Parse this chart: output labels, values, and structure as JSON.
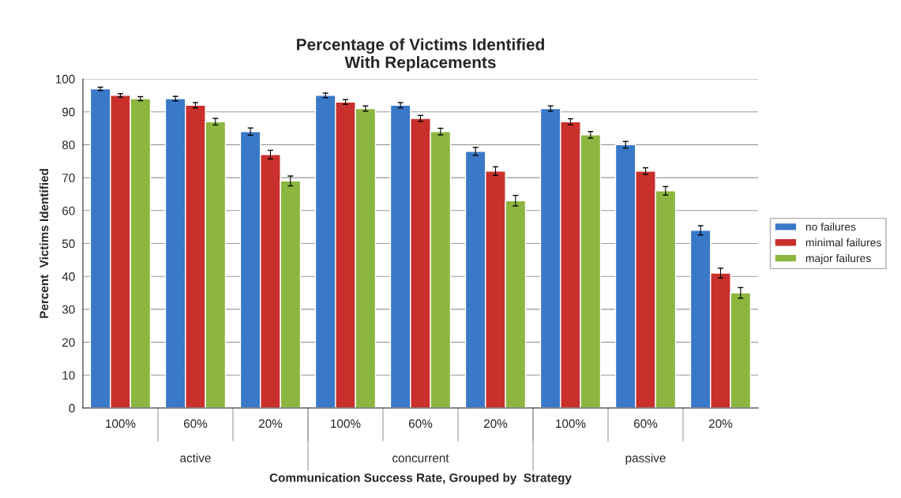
{
  "chart_data": {
    "type": "bar",
    "title": "Percentage of Victims Identified\nWith Replacements",
    "xlabel": "Communication Success Rate, Grouped by  Strategy",
    "ylabel": "Percent  Victims Identified",
    "categories": [
      "100%",
      "60%",
      "20%",
      "100%",
      "60%",
      "20%",
      "100%",
      "60%",
      "20%"
    ],
    "annotations": [
      "active",
      "concurrent",
      "passive"
    ],
    "series": [
      {
        "name": "no failures",
        "color": "#3a78c8",
        "values": [
          97,
          94,
          84,
          95,
          92,
          78,
          91,
          80,
          54
        ],
        "errors": [
          0.5,
          0.7,
          1.1,
          0.7,
          0.8,
          1.2,
          0.8,
          1.0,
          1.4
        ]
      },
      {
        "name": "minimal failures",
        "color": "#c9302c",
        "values": [
          95,
          92,
          77,
          93,
          88,
          72,
          87,
          72,
          41
        ],
        "errors": [
          0.5,
          0.8,
          1.3,
          0.7,
          0.9,
          1.3,
          0.9,
          1.0,
          1.5
        ]
      },
      {
        "name": "major failures",
        "color": "#8db640",
        "values": [
          94,
          87,
          69,
          91,
          84,
          63,
          83,
          66,
          35
        ],
        "errors": [
          0.6,
          1.0,
          1.5,
          0.8,
          1.0,
          1.6,
          1.0,
          1.3,
          1.6
        ]
      }
    ],
    "ylim": [
      0,
      100
    ],
    "yticks": [
      0,
      10,
      20,
      30,
      40,
      50,
      60,
      70,
      80,
      90,
      100
    ],
    "grid": "y",
    "legend": "right"
  }
}
